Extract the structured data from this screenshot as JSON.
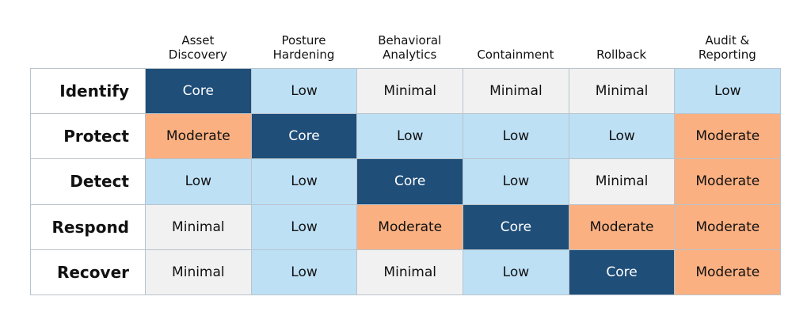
{
  "matrix": {
    "columns": [
      "Asset\nDiscovery",
      "Posture\nHardening",
      "Behavioral\nAnalytics",
      "Containment",
      "Rollback",
      "Audit &\nReporting"
    ],
    "rows": [
      {
        "label": "Identify",
        "cells": [
          "Core",
          "Low",
          "Minimal",
          "Minimal",
          "Minimal",
          "Low"
        ]
      },
      {
        "label": "Protect",
        "cells": [
          "Moderate",
          "Core",
          "Low",
          "Low",
          "Low",
          "Moderate"
        ]
      },
      {
        "label": "Detect",
        "cells": [
          "Low",
          "Low",
          "Core",
          "Low",
          "Minimal",
          "Moderate"
        ]
      },
      {
        "label": "Respond",
        "cells": [
          "Minimal",
          "Low",
          "Moderate",
          "Core",
          "Moderate",
          "Moderate"
        ]
      },
      {
        "label": "Recover",
        "cells": [
          "Minimal",
          "Low",
          "Minimal",
          "Low",
          "Core",
          "Moderate"
        ]
      }
    ],
    "level_colors": {
      "Core": "#1f4e79",
      "Low": "#bde0f5",
      "Minimal": "#f1f1f2",
      "Moderate": "#fbb081"
    }
  }
}
